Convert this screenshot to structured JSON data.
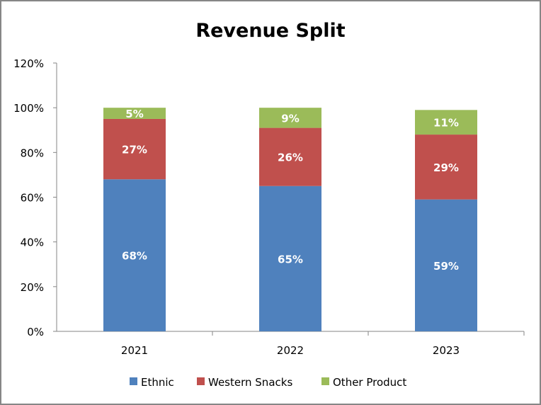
{
  "chart_data": {
    "type": "bar",
    "stacked": true,
    "title": "Revenue Split",
    "xlabel": "",
    "ylabel": "",
    "categories": [
      "2021",
      "2022",
      "2023"
    ],
    "series": [
      {
        "name": "Ethnic",
        "color": "#4F81BD",
        "values": [
          68,
          65,
          59
        ],
        "labels": [
          "68%",
          "65%",
          "59%"
        ]
      },
      {
        "name": "Western Snacks",
        "color": "#C0504D",
        "values": [
          27,
          26,
          29
        ],
        "labels": [
          "27%",
          "26%",
          "29%"
        ]
      },
      {
        "name": "Other Product",
        "color": "#9BBB59",
        "values": [
          5,
          9,
          11
        ],
        "labels": [
          "5%",
          "9%",
          "11%"
        ]
      }
    ],
    "ylim": [
      0,
      120
    ],
    "yticks": [
      0,
      20,
      40,
      60,
      80,
      100,
      120
    ],
    "ytick_labels": [
      "0%",
      "20%",
      "40%",
      "60%",
      "80%",
      "100%",
      "120%"
    ],
    "grid": false,
    "legend_position": "bottom"
  }
}
